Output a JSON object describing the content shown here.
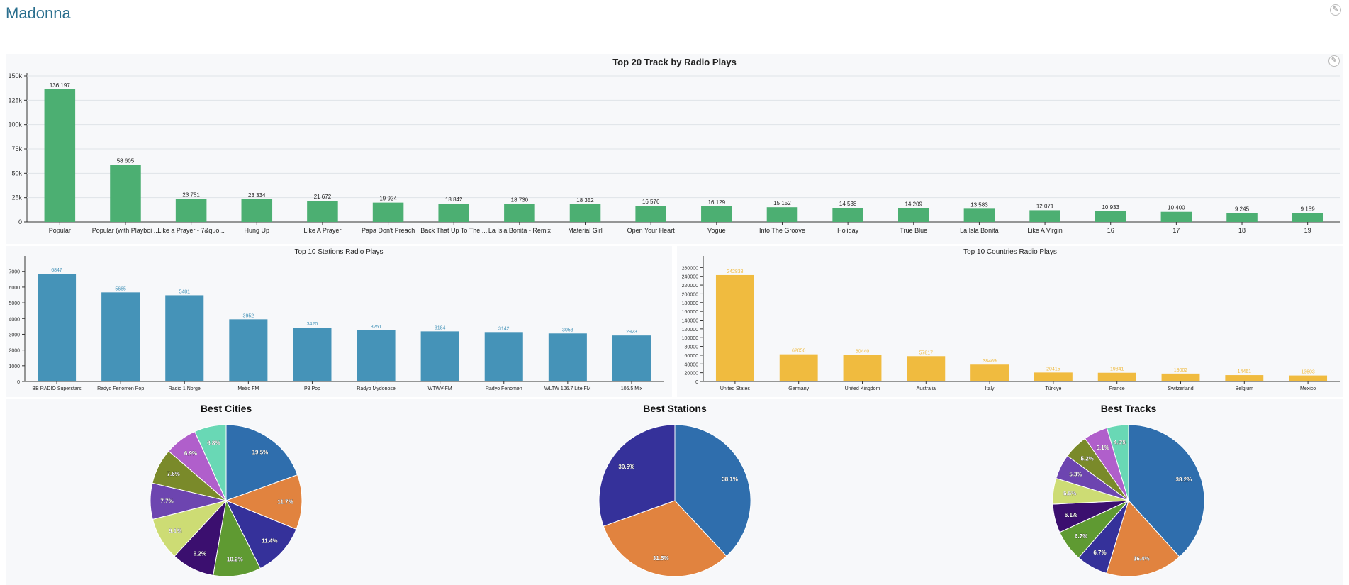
{
  "page": {
    "title": "Madonna",
    "edit_icon": "pencil-icon"
  },
  "colors": {
    "tracks_bar": "#4caf72",
    "stations_bar": "#4593b8",
    "countries_bar": "#f0bb3f",
    "panel_bg": "#f7f8fa",
    "title_text": "#2a6f8e"
  },
  "chart_data": [
    {
      "id": "tracks",
      "type": "bar",
      "title": "Top 20 Track by Radio Plays",
      "categories": [
        "Popular",
        "Popular (with Playboi ...",
        "Like a Prayer - 7&quo...",
        "Hung Up",
        "Like A Prayer",
        "Papa Don't Preach",
        "Back That Up To The ...",
        "La Isla Bonita - Remix",
        "Material Girl",
        "Open Your Heart",
        "Vogue",
        "Into The Groove",
        "Holiday",
        "True Blue",
        "La Isla Bonita",
        "Like A Virgin",
        "16",
        "17",
        "18",
        "19"
      ],
      "values": [
        136197,
        58605,
        23751,
        23334,
        21672,
        19924,
        18842,
        18730,
        18352,
        16576,
        16129,
        15152,
        14538,
        14209,
        13583,
        12071,
        10933,
        10400,
        9245,
        9159
      ],
      "value_labels": [
        "136 197",
        "58 605",
        "23 751",
        "23 334",
        "21 672",
        "19 924",
        "18 842",
        "18 730",
        "18 352",
        "16 576",
        "16 129",
        "15 152",
        "14 538",
        "14 209",
        "13 583",
        "12 071",
        "10 933",
        "10 400",
        "9 245",
        "9 159"
      ],
      "y_ticks": [
        {
          "value": 0,
          "label": "0"
        },
        {
          "value": 25000,
          "label": "25k"
        },
        {
          "value": 50000,
          "label": "50k"
        },
        {
          "value": 75000,
          "label": "75k"
        },
        {
          "value": 100000,
          "label": "100k"
        },
        {
          "value": 125000,
          "label": "125k"
        },
        {
          "value": 150000,
          "label": "150k"
        }
      ],
      "ylim": [
        0,
        150000
      ],
      "grid": true
    },
    {
      "id": "stations",
      "type": "bar",
      "title": "Top 10 Stations Radio Plays",
      "categories": [
        "BB RADIO Superstars",
        "Radyo Fenomen Pop",
        "Radio 1 Norge",
        "Metro FM",
        "P8 Pop",
        "Radyo Mydonose",
        "WTWV-FM",
        "Radyo Fenomen",
        "WLTW 106.7 Lite FM",
        "106.5 Mix"
      ],
      "values": [
        6847,
        5665,
        5481,
        3952,
        3420,
        3251,
        3184,
        3142,
        3053,
        2923
      ],
      "value_labels": [
        "6847",
        "5665",
        "5481",
        "3952",
        "3420",
        "3251",
        "3184",
        "3142",
        "3053",
        "2923"
      ],
      "y_ticks": [
        {
          "value": 0,
          "label": "0"
        },
        {
          "value": 1000,
          "label": "1000"
        },
        {
          "value": 2000,
          "label": "2000"
        },
        {
          "value": 3000,
          "label": "3000"
        },
        {
          "value": 4000,
          "label": "4000"
        },
        {
          "value": 5000,
          "label": "5000"
        },
        {
          "value": 6000,
          "label": "6000"
        },
        {
          "value": 7000,
          "label": "7000"
        }
      ],
      "ylim": [
        0,
        7800
      ],
      "grid": false
    },
    {
      "id": "countries",
      "type": "bar",
      "title": "Top 10 Countries Radio Plays",
      "categories": [
        "United States",
        "Germany",
        "United Kingdom",
        "Australia",
        "Italy",
        "Türkiye",
        "France",
        "Switzerland",
        "Belgium",
        "Mexico"
      ],
      "values": [
        242838,
        62050,
        60440,
        57817,
        38469,
        20415,
        19841,
        18002,
        14461,
        13603
      ],
      "value_labels": [
        "242838",
        "62050",
        "60440",
        "57817",
        "38469",
        "20415",
        "19841",
        "18002",
        "14461",
        "13603"
      ],
      "y_ticks": [
        {
          "value": 0,
          "label": "0"
        },
        {
          "value": 20000,
          "label": "20000"
        },
        {
          "value": 40000,
          "label": "40000"
        },
        {
          "value": 60000,
          "label": "60000"
        },
        {
          "value": 80000,
          "label": "80000"
        },
        {
          "value": 100000,
          "label": "100000"
        },
        {
          "value": 120000,
          "label": "120000"
        },
        {
          "value": 140000,
          "label": "140000"
        },
        {
          "value": 160000,
          "label": "160000"
        },
        {
          "value": 180000,
          "label": "180000"
        },
        {
          "value": 200000,
          "label": "200000"
        },
        {
          "value": 220000,
          "label": "220000"
        },
        {
          "value": 240000,
          "label": "240000"
        },
        {
          "value": 260000,
          "label": "260000"
        }
      ],
      "ylim": [
        0,
        280000
      ],
      "grid": false
    },
    {
      "id": "cities",
      "type": "pie",
      "title": "Best Cities",
      "values": [
        19.5,
        11.7,
        11.4,
        10.2,
        9.2,
        9.1,
        7.7,
        7.6,
        6.9,
        6.8
      ],
      "labels": [
        "19.5%",
        "11.7%",
        "11.4%",
        "10.2%",
        "9.2%",
        "9.1%",
        "7.7%",
        "7.6%",
        "6.9%",
        "6.8%"
      ],
      "colors": [
        "#2f6ead",
        "#e1833f",
        "#35319a",
        "#5f9a32",
        "#3b0f6f",
        "#cddc74",
        "#6d45b0",
        "#7a8a2a",
        "#b05fcb",
        "#69d8b5"
      ]
    },
    {
      "id": "stations_pie",
      "type": "pie",
      "title": "Best Stations",
      "values": [
        38.1,
        31.5,
        30.5
      ],
      "labels": [
        "38.1%",
        "31.5%",
        "30.5%"
      ],
      "colors": [
        "#2f6ead",
        "#e1833f",
        "#35319a"
      ]
    },
    {
      "id": "tracks_pie",
      "type": "pie",
      "title": "Best Tracks",
      "values": [
        38.2,
        16.4,
        6.7,
        6.7,
        6.1,
        5.5,
        5.3,
        5.2,
        5.1,
        4.6
      ],
      "labels": [
        "38.2%",
        "16.4%",
        "6.7%",
        "6.7%",
        "6.1%",
        "5.5%",
        "5.3%",
        "5.2%",
        "5.1%",
        "4.6%"
      ],
      "colors": [
        "#2f6ead",
        "#e1833f",
        "#35319a",
        "#5f9a32",
        "#3b0f6f",
        "#cddc74",
        "#6d45b0",
        "#7a8a2a",
        "#b05fcb",
        "#69d8b5"
      ]
    }
  ]
}
